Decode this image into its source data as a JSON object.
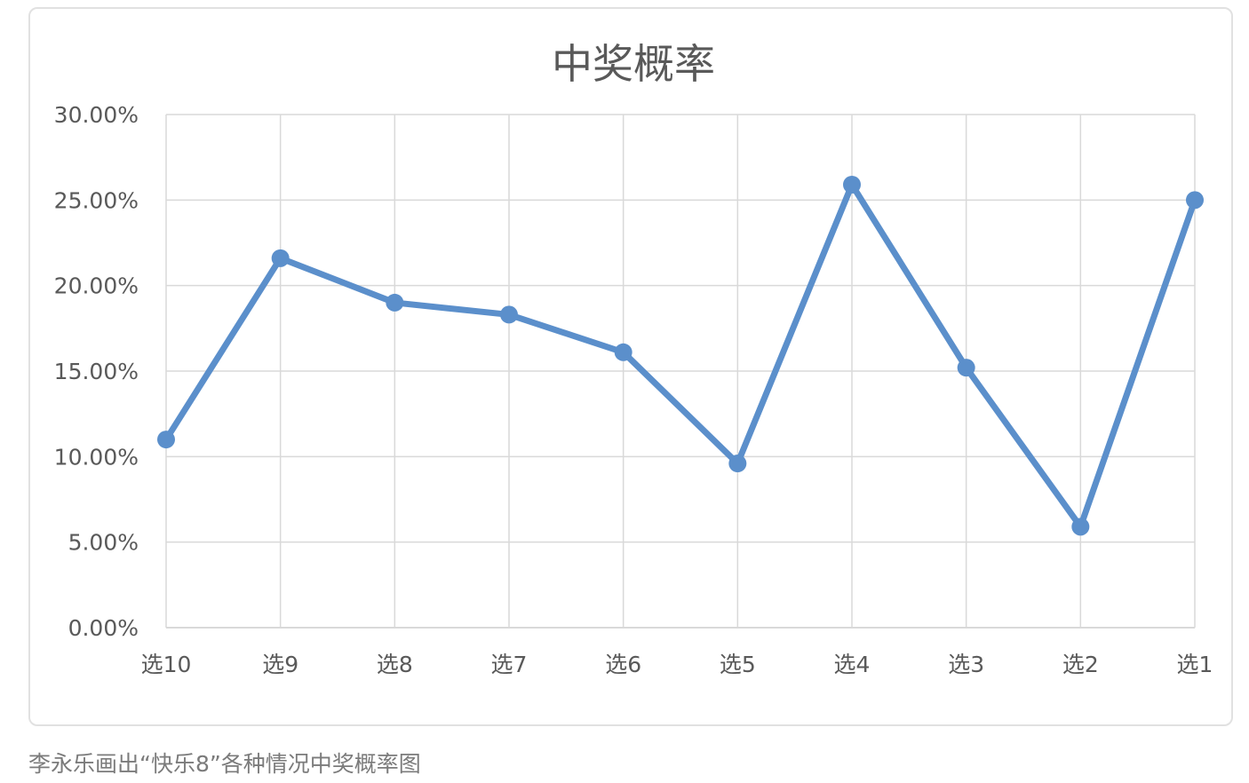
{
  "caption": "李永乐画出“快乐8”各种情况中奖概率图",
  "chart_data": {
    "type": "line",
    "title": "中奖概率",
    "xlabel": "",
    "ylabel": "",
    "categories": [
      "选10",
      "选9",
      "选8",
      "选7",
      "选6",
      "选5",
      "选4",
      "选3",
      "选2",
      "选1"
    ],
    "y_tick_labels": [
      "0.00%",
      "5.00%",
      "10.00%",
      "15.00%",
      "20.00%",
      "25.00%",
      "30.00%"
    ],
    "ylim": [
      0,
      30
    ],
    "y_unit": "%",
    "grid": true,
    "legend": "none",
    "series": [
      {
        "values": [
          11.0,
          21.6,
          19.0,
          18.3,
          16.1,
          9.6,
          25.9,
          15.2,
          5.9,
          25.0
        ],
        "color": "#5b8fcb"
      }
    ]
  }
}
